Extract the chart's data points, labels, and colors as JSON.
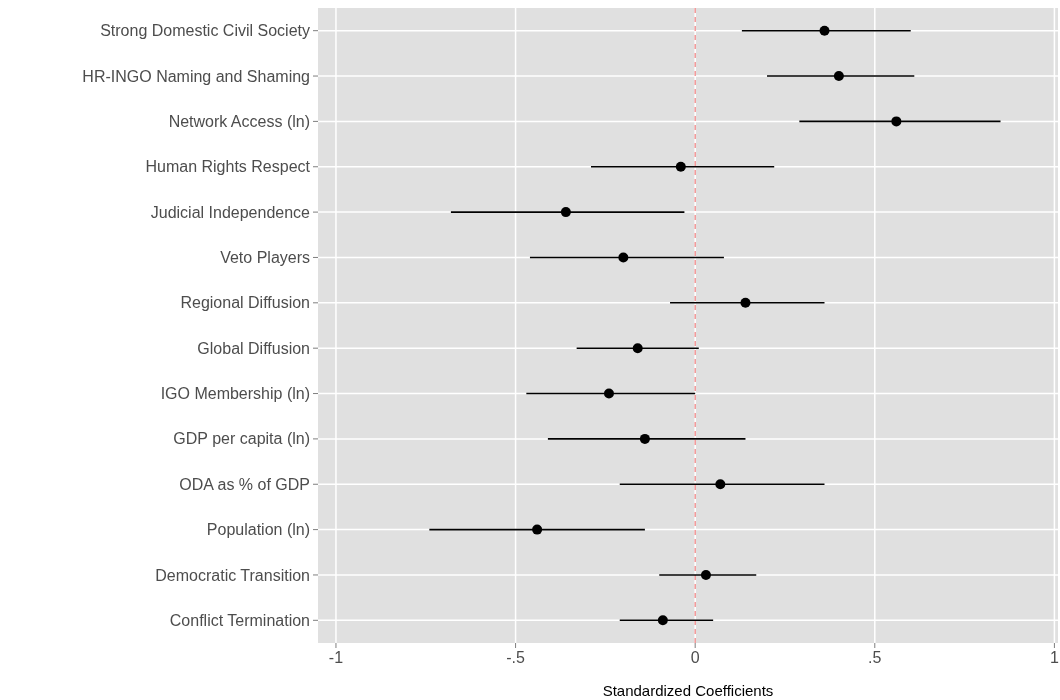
{
  "chart_data": {
    "type": "scatter",
    "orientation": "horizontal",
    "xlabel": "Standardized Coefficients",
    "categories": [
      "Strong Domestic Civil Society",
      "HR-INGO Naming and Shaming",
      "Network Access (ln)",
      "Human Rights Respect",
      "Judicial Independence",
      "Veto Players",
      "Regional Diffusion",
      "Global Diffusion",
      "IGO Membership (ln)",
      "GDP per capita (ln)",
      "ODA as % of GDP",
      "Population (ln)",
      "Democratic Transition",
      "Conflict Termination"
    ],
    "series": [
      {
        "color": "#000000",
        "values": [
          0.36,
          0.4,
          0.56,
          -0.04,
          -0.36,
          -0.2,
          0.14,
          -0.16,
          -0.24,
          -0.14,
          0.07,
          -0.44,
          0.03,
          -0.09
        ],
        "errors": [
          [
            0.13,
            0.6
          ],
          [
            0.2,
            0.61
          ],
          [
            0.29,
            0.85
          ],
          [
            -0.29,
            0.22
          ],
          [
            -0.68,
            -0.03
          ],
          [
            -0.46,
            0.08
          ],
          [
            -0.07,
            0.36
          ],
          [
            -0.33,
            0.01
          ],
          [
            -0.47,
            0.0
          ],
          [
            -0.41,
            0.14
          ],
          [
            -0.21,
            0.36
          ],
          [
            -0.74,
            -0.14
          ],
          [
            -0.1,
            0.17
          ],
          [
            -0.21,
            0.05
          ]
        ]
      }
    ],
    "xlim": [
      -1.05,
      1.01
    ],
    "xticks": [
      -1,
      {
        "value": -0.5,
        "label": "-.5"
      },
      0,
      {
        "value": 0.5,
        "label": ".5"
      },
      1
    ],
    "ref_lines": [
      {
        "axis": "x",
        "value": 0,
        "color": "#f08080",
        "line_style": "dashed"
      }
    ],
    "grid": true,
    "marker": "circle"
  }
}
